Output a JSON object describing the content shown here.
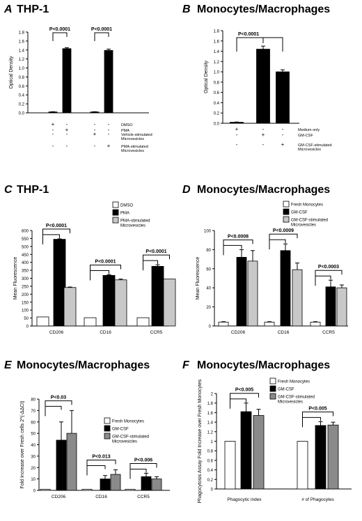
{
  "figure": {
    "panels": [
      {
        "letter": "A",
        "title": "THP-1"
      },
      {
        "letter": "B",
        "title": "Monocytes/Macrophages"
      },
      {
        "letter": "C",
        "title": "THP-1"
      },
      {
        "letter": "D",
        "title": "Monocytes/Macrophages"
      },
      {
        "letter": "E",
        "title": "Monocytes/Macrophages"
      },
      {
        "letter": "F",
        "title": "Monocytes/Macrophages"
      }
    ]
  },
  "colors": {
    "black": "#000000",
    "white": "#ffffff",
    "light_gray": "#c8c8c8",
    "dark_gray": "#8a8a8a"
  },
  "chart_data": [
    {
      "panel": "A",
      "type": "bar",
      "title": "THP-1",
      "ylabel": "Optical Density",
      "ylim": [
        0,
        1.8
      ],
      "yticks": [
        0,
        0.2,
        0.4,
        0.6,
        0.8,
        1.0,
        1.2,
        1.4,
        1.6,
        1.8
      ],
      "ytick_labels": [
        "0.0",
        "0.2",
        "0.4",
        "0.6",
        "0.8",
        "1.0",
        "1.2",
        "1.4",
        "1.6",
        "1.8"
      ],
      "bars": [
        {
          "value": 0.02,
          "error": 0.005,
          "color": "black"
        },
        {
          "value": 1.43,
          "error": 0.02,
          "color": "black"
        },
        {
          "value": 0.02,
          "error": 0.005,
          "color": "black"
        },
        {
          "value": 1.39,
          "error": 0.03,
          "color": "black"
        }
      ],
      "condition_rows": [
        {
          "label": "DMSO",
          "marks": [
            "+",
            "-",
            "-",
            "-"
          ]
        },
        {
          "label": "PMA",
          "marks": [
            "-",
            "+",
            "-",
            "-"
          ]
        },
        {
          "label": "Vehicle-stimulated Microvesicles",
          "marks": [
            "-",
            "-",
            "+",
            "-"
          ]
        },
        {
          "label": "PMA-stimulated Microvesicles",
          "marks": [
            "-",
            "-",
            "-",
            "+"
          ]
        }
      ],
      "significance": [
        {
          "text": "P<0.0001",
          "from": 0,
          "to": 1
        },
        {
          "text": "P<0.0001",
          "from": 2,
          "to": 3
        }
      ]
    },
    {
      "panel": "B",
      "type": "bar",
      "title": "Monocytes/Macrophages",
      "ylabel": "Optical Density",
      "ylim": [
        0,
        1.8
      ],
      "yticks": [
        0,
        0.2,
        0.4,
        0.6,
        0.8,
        1.0,
        1.2,
        1.4,
        1.6,
        1.8
      ],
      "ytick_labels": [
        "0.0",
        "0.2",
        "0.4",
        "0.6",
        "0.8",
        "1.0",
        "1.2",
        "1.4",
        "1.6",
        "1.8"
      ],
      "bars": [
        {
          "value": 0.02,
          "error": 0.005,
          "color": "black"
        },
        {
          "value": 1.44,
          "error": 0.06,
          "color": "black"
        },
        {
          "value": 1.0,
          "error": 0.04,
          "color": "black"
        }
      ],
      "condition_rows": [
        {
          "label": "Medium only",
          "marks": [
            "+",
            "-",
            "-"
          ]
        },
        {
          "label": "GM-CSF",
          "marks": [
            "-",
            "+",
            "-"
          ]
        },
        {
          "label": "GM-CSF-stimulated Microvesicles",
          "marks": [
            "-",
            "-",
            "+"
          ]
        }
      ],
      "significance": [
        {
          "text": "P<0.0001",
          "from": 0,
          "to": 1,
          "to2": 2
        }
      ]
    },
    {
      "panel": "C",
      "type": "bar",
      "title": "THP-1",
      "ylabel": "Mean Fluorescence",
      "ylim": [
        0,
        600
      ],
      "yticks": [
        0,
        50,
        100,
        150,
        200,
        250,
        300,
        350,
        400,
        450,
        500,
        550,
        600
      ],
      "ytick_labels": [
        "0",
        "50",
        "100",
        "150",
        "200",
        "250",
        "300",
        "350",
        "400",
        "450",
        "500",
        "550",
        "600"
      ],
      "categories": [
        "CD206",
        "CD16",
        "CCR5"
      ],
      "series": [
        {
          "name": "DMSO",
          "color": "white",
          "values": [
            57,
            52,
            52
          ],
          "errors": [
            0,
            0,
            0
          ]
        },
        {
          "name": "PMA",
          "color": "black",
          "values": [
            545,
            318,
            375
          ],
          "errors": [
            3,
            4,
            10
          ]
        },
        {
          "name": "PMA-stimulated Microvesicles",
          "color": "light_gray",
          "values": [
            242,
            290,
            295
          ],
          "errors": [
            3,
            5,
            0
          ]
        }
      ],
      "significance": [
        {
          "text": "P<0.0001",
          "group": 0
        },
        {
          "text": "P<0.0001",
          "group": 1
        },
        {
          "text": "P<0.0001",
          "group": 2
        }
      ]
    },
    {
      "panel": "D",
      "type": "bar",
      "title": "Monocytes/Macrophages",
      "ylabel": "Mean Fluorescence",
      "ylim": [
        0,
        100
      ],
      "yticks": [
        0,
        20,
        40,
        60,
        80,
        100
      ],
      "ytick_labels": [
        "0",
        "20",
        "40",
        "60",
        "80",
        "100"
      ],
      "categories": [
        "CD206",
        "CD16",
        "CCR5"
      ],
      "series": [
        {
          "name": "Fresh Monocytes",
          "color": "white",
          "values": [
            4,
            4,
            4
          ],
          "errors": [
            0.5,
            0.5,
            0.5
          ]
        },
        {
          "name": "GM-CSF",
          "color": "black",
          "values": [
            72,
            79,
            41
          ],
          "errors": [
            8,
            7,
            7
          ]
        },
        {
          "name": "GM-CSF-stimulated Microvesicles",
          "color": "light_gray",
          "values": [
            68,
            59,
            40
          ],
          "errors": [
            11,
            7,
            3
          ]
        }
      ],
      "significance": [
        {
          "text": "P<0.0008",
          "group": 0
        },
        {
          "text": "P<0.0009",
          "group": 1
        },
        {
          "text": "P<0.0003",
          "group": 2
        }
      ]
    },
    {
      "panel": "E",
      "type": "bar",
      "title": "Monocytes/Macrophages",
      "ylabel": "Fold Increase over Fresh cells  2^(-ΔΔCt)",
      "ylim": [
        0,
        80
      ],
      "yticks": [
        0,
        10,
        20,
        30,
        40,
        50,
        60,
        70,
        80
      ],
      "ytick_labels": [
        "0",
        "10",
        "20",
        "30",
        "40",
        "50",
        "60",
        "70",
        "80"
      ],
      "categories": [
        "CD206",
        "CD16",
        "CCR5"
      ],
      "series": [
        {
          "name": "Fresh Monocytes",
          "color": "white",
          "values": [
            1,
            1,
            1
          ],
          "errors": [
            0,
            0,
            0
          ]
        },
        {
          "name": "GM-CSF",
          "color": "black",
          "values": [
            44,
            10,
            12
          ],
          "errors": [
            16,
            3,
            3
          ]
        },
        {
          "name": "GM-CSF-stimulated Microvesicles",
          "color": "dark_gray",
          "values": [
            50,
            14,
            10
          ],
          "errors": [
            20,
            4,
            2
          ]
        }
      ],
      "significance": [
        {
          "text": "P<0.03",
          "group": 0
        },
        {
          "text": "P<0.013",
          "group": 1
        },
        {
          "text": "P<0.006",
          "group": 2
        }
      ]
    },
    {
      "panel": "F",
      "type": "bar",
      "title": "Monocytes/Macrophages",
      "ylabel": "Phagocytosis Assay Fold Increase over Fresh Monocytes",
      "ylim": [
        0,
        2
      ],
      "yticks": [
        0,
        0.2,
        0.4,
        0.6,
        0.8,
        1.0,
        1.2,
        1.4,
        1.6,
        1.8,
        2.0
      ],
      "ytick_labels": [
        "0",
        "0.2",
        "0.4",
        "0.6",
        "0.8",
        "1",
        "1.2",
        "1.4",
        "1.6",
        "1.8",
        "2"
      ],
      "categories": [
        "Phagocytic index",
        "# of Phagocytes"
      ],
      "series": [
        {
          "name": "Fresh Monocytes",
          "color": "white",
          "values": [
            1,
            1
          ],
          "errors": [
            0,
            0
          ]
        },
        {
          "name": "GM-CSF",
          "color": "black",
          "values": [
            1.62,
            1.33
          ],
          "errors": [
            0.18,
            0.08
          ]
        },
        {
          "name": "GM-CSF-stimulated Microvesicles",
          "color": "dark_gray",
          "values": [
            1.54,
            1.34
          ],
          "errors": [
            0.13,
            0.06
          ]
        }
      ],
      "significance": [
        {
          "text": "P<0.005",
          "group": 0
        },
        {
          "text": "P<0.005",
          "group": 1
        }
      ]
    }
  ]
}
